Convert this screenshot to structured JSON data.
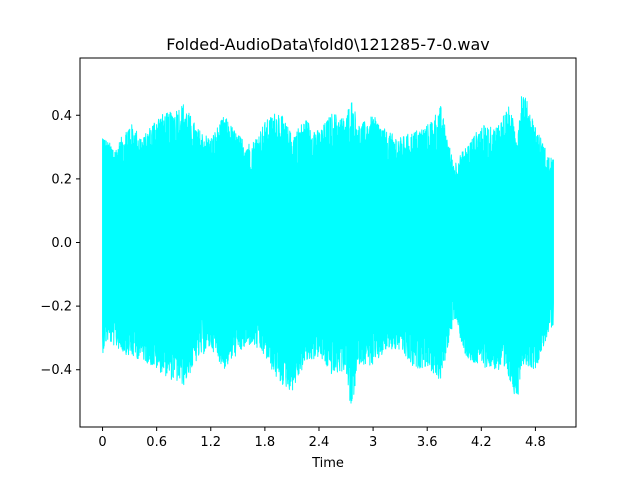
{
  "chart_data": {
    "type": "line",
    "title": "Folded-AudioData\\fold0\\121285-7-0.wav",
    "xlabel": "Time",
    "ylabel": "",
    "xlim": [
      -0.25,
      5.25
    ],
    "ylim": [
      -0.58,
      0.58
    ],
    "x_ticks": [
      0,
      0.6,
      1.2,
      1.8,
      2.4,
      3.0,
      3.6,
      4.2,
      4.8
    ],
    "x_tick_labels": [
      "0",
      "0.6",
      "1.2",
      "1.8",
      "2.4",
      "3",
      "3.6",
      "4.2",
      "4.8"
    ],
    "y_ticks": [
      -0.4,
      -0.2,
      0.0,
      0.2,
      0.4
    ],
    "y_tick_labels": [
      "−0.4",
      "−0.2",
      "0.0",
      "0.2",
      "0.4"
    ],
    "grid": false,
    "series": [
      {
        "color": "#00ffff",
        "duration": 5.0,
        "envelope_time": [
          0.0,
          0.05,
          0.15,
          0.3,
          0.45,
          0.6,
          0.75,
          0.9,
          1.05,
          1.2,
          1.35,
          1.5,
          1.65,
          1.8,
          1.95,
          2.1,
          2.25,
          2.4,
          2.55,
          2.7,
          2.75,
          2.85,
          3.0,
          3.15,
          3.3,
          3.45,
          3.6,
          3.75,
          3.85,
          3.9,
          4.05,
          4.2,
          4.35,
          4.5,
          4.6,
          4.65,
          4.8,
          4.95,
          5.0
        ],
        "envelope_max": [
          0.35,
          0.32,
          0.3,
          0.38,
          0.33,
          0.4,
          0.41,
          0.44,
          0.36,
          0.33,
          0.4,
          0.34,
          0.31,
          0.38,
          0.42,
          0.34,
          0.39,
          0.35,
          0.41,
          0.39,
          0.46,
          0.37,
          0.4,
          0.35,
          0.33,
          0.35,
          0.37,
          0.43,
          0.3,
          0.25,
          0.31,
          0.37,
          0.36,
          0.43,
          0.35,
          0.49,
          0.37,
          0.27,
          0.27
        ],
        "envelope_min": [
          -0.35,
          -0.31,
          -0.33,
          -0.36,
          -0.37,
          -0.4,
          -0.43,
          -0.45,
          -0.37,
          -0.33,
          -0.4,
          -0.35,
          -0.32,
          -0.36,
          -0.44,
          -0.47,
          -0.38,
          -0.36,
          -0.42,
          -0.4,
          -0.54,
          -0.38,
          -0.39,
          -0.34,
          -0.34,
          -0.4,
          -0.39,
          -0.44,
          -0.3,
          -0.24,
          -0.38,
          -0.39,
          -0.4,
          -0.43,
          -0.5,
          -0.38,
          -0.4,
          -0.28,
          -0.27
        ]
      }
    ]
  }
}
